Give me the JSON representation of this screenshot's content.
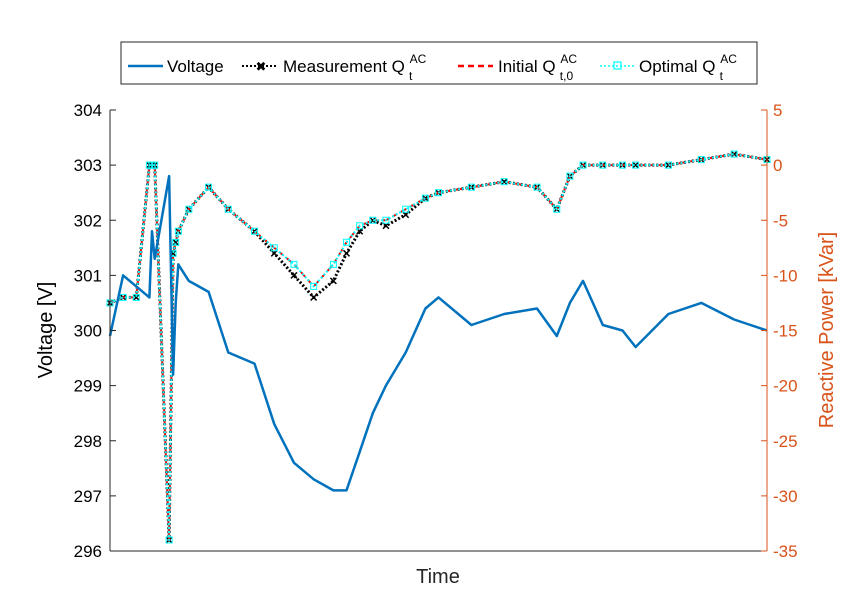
{
  "chart_data": {
    "type": "line",
    "title": "",
    "xlabel": "Time",
    "ylabel_left": "Voltage [V]",
    "ylabel_right": "Reactive Power [kVar]",
    "ylim_left": [
      296,
      304
    ],
    "ylim_right": [
      -35,
      5
    ],
    "yticks_left": [
      "304",
      "303",
      "302",
      "301",
      "300",
      "299",
      "298",
      "297",
      "296"
    ],
    "yticks_right": [
      "5",
      "0",
      "-5",
      "-10",
      "-15",
      "-20",
      "-25",
      "-30",
      "-35"
    ],
    "legend_position": "top-center, outside plot",
    "x": [
      0,
      0.02,
      0.04,
      0.06,
      0.064,
      0.068,
      0.09,
      0.096,
      0.1,
      0.104,
      0.12,
      0.15,
      0.18,
      0.22,
      0.25,
      0.28,
      0.31,
      0.34,
      0.36,
      0.38,
      0.4,
      0.42,
      0.45,
      0.48,
      0.5,
      0.55,
      0.6,
      0.65,
      0.68,
      0.7,
      0.72,
      0.75,
      0.78,
      0.8,
      0.85,
      0.9,
      0.95,
      1.0
    ],
    "series": [
      {
        "name": "Voltage",
        "axis": "left",
        "color": "#0072BD",
        "style": "solid",
        "values": [
          299.9,
          301.0,
          300.8,
          300.6,
          301.8,
          301.3,
          302.8,
          299.2,
          300.5,
          301.2,
          300.9,
          300.7,
          299.6,
          299.4,
          298.3,
          297.6,
          297.3,
          297.1,
          297.1,
          297.8,
          298.5,
          299.0,
          299.6,
          300.4,
          300.6,
          300.1,
          300.3,
          300.4,
          299.9,
          300.5,
          300.9,
          300.1,
          300.0,
          299.7,
          300.3,
          300.5,
          300.2,
          300.0
        ]
      },
      {
        "name": "Measurement Q_t^AC",
        "axis": "right",
        "color": "#000000",
        "style": "dotted-marker-x",
        "values": [
          -12.5,
          -12.0,
          -12.0,
          0.0,
          0.0,
          0.0,
          -34.0,
          -8.0,
          -7.0,
          -6.0,
          -4.0,
          -2.0,
          -4.0,
          -6.0,
          -8.0,
          -10.0,
          -12.0,
          -10.5,
          -8.0,
          -6.0,
          -5.0,
          -5.5,
          -4.5,
          -3.0,
          -2.5,
          -2.0,
          -1.5,
          -2.0,
          -4.0,
          -1.0,
          0.0,
          0.0,
          0.0,
          0.0,
          0.0,
          0.5,
          1.0,
          0.5
        ]
      },
      {
        "name": "Initial Q_{t,0}^AC",
        "axis": "right",
        "color": "#FF0000",
        "style": "dashed",
        "values": [
          -12.5,
          -12.0,
          -12.0,
          0.0,
          0.0,
          0.0,
          -34.0,
          -8.0,
          -7.0,
          -6.0,
          -4.0,
          -2.0,
          -4.0,
          -6.0,
          -7.5,
          -9.0,
          -11.0,
          -9.0,
          -7.0,
          -5.5,
          -5.0,
          -5.0,
          -4.0,
          -3.0,
          -2.5,
          -2.0,
          -1.5,
          -2.0,
          -4.0,
          -1.0,
          0.0,
          0.0,
          0.0,
          0.0,
          0.0,
          0.5,
          1.0,
          0.5
        ]
      },
      {
        "name": "Optimal Q_t^AC",
        "axis": "right",
        "color": "#00FFFF",
        "style": "dotted-marker-square",
        "values": [
          -12.5,
          -12.0,
          -12.0,
          0.0,
          0.0,
          0.0,
          -34.0,
          -8.0,
          -7.0,
          -6.0,
          -4.0,
          -2.0,
          -4.0,
          -6.0,
          -7.5,
          -9.0,
          -11.0,
          -9.0,
          -7.0,
          -5.5,
          -5.0,
          -5.0,
          -4.0,
          -3.0,
          -2.5,
          -2.0,
          -1.5,
          -2.0,
          -4.0,
          -1.0,
          0.0,
          0.0,
          0.0,
          0.0,
          0.0,
          0.5,
          1.0,
          0.5
        ]
      }
    ]
  },
  "legend": {
    "items": [
      {
        "base": "Voltage",
        "sup": "",
        "sub": "",
        "color": "#0072BD"
      },
      {
        "base": "Measurement Q",
        "sup": "AC",
        "sub": "t",
        "color": "#000000"
      },
      {
        "base": "Initial Q",
        "sup": "AC",
        "sub": "t,0",
        "color": "#FF0000"
      },
      {
        "base": "Optimal Q",
        "sup": "AC",
        "sub": "t",
        "color": "#00FFFF"
      }
    ]
  },
  "colors": {
    "right_axis": "#D95319",
    "voltage": "#0072BD"
  }
}
